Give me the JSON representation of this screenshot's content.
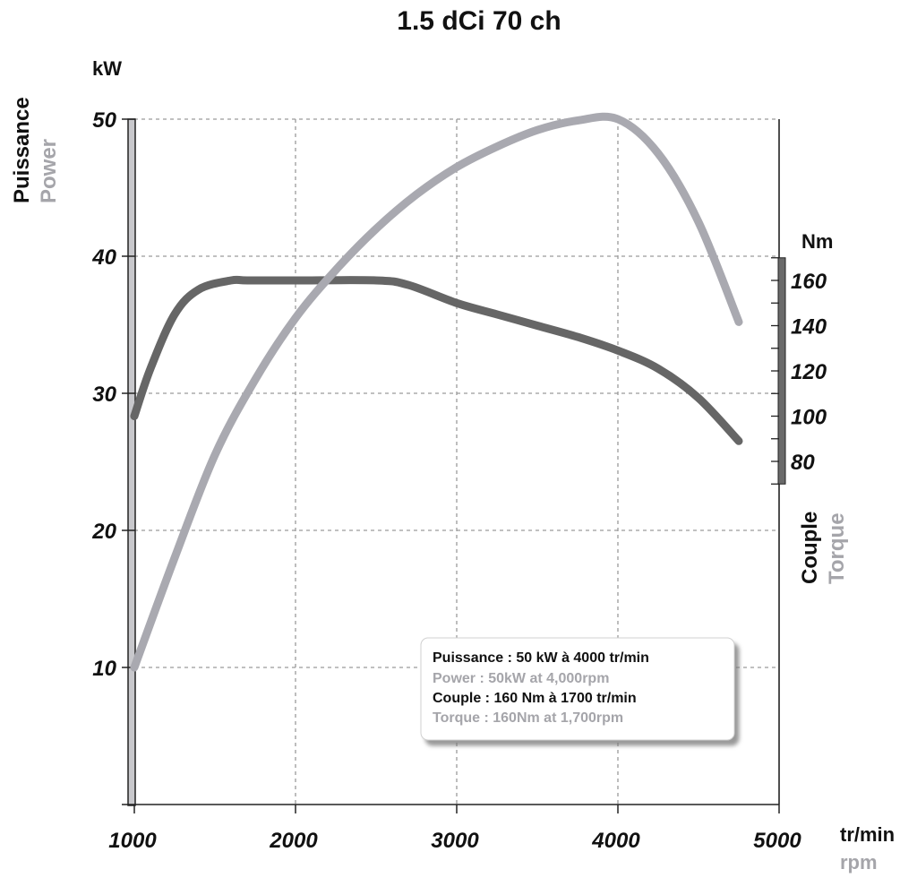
{
  "chart_data": {
    "type": "line",
    "title": "1.5 dCi 70 ch",
    "x_axis": {
      "label": "tr/min",
      "label_secondary": "rpm",
      "range": [
        1000,
        5000
      ],
      "ticks": [
        1000,
        2000,
        3000,
        4000,
        5000
      ]
    },
    "y_axis_left": {
      "unit": "kW",
      "label": "Puissance",
      "label_secondary": "Power",
      "range": [
        0,
        50
      ],
      "ticks": [
        10,
        20,
        30,
        40,
        50
      ]
    },
    "y_axis_right": {
      "unit": "Nm",
      "label": "Couple",
      "label_secondary": "Torque",
      "range": [
        70,
        170
      ],
      "ticks": [
        80,
        100,
        120,
        140,
        160
      ]
    },
    "grid": true,
    "series": [
      {
        "name": "Puissance",
        "axis": "left",
        "color": "#a9a9b0",
        "x": [
          1000,
          1250,
          1500,
          1750,
          2000,
          2250,
          2500,
          2750,
          3000,
          3250,
          3500,
          3750,
          4000,
          4250,
          4500,
          4750
        ],
        "y": [
          10,
          18,
          25.5,
          31,
          35.5,
          39,
          42,
          44.5,
          46.5,
          48,
          49.2,
          49.9,
          50,
          47.5,
          42.5,
          35.2
        ]
      },
      {
        "name": "Couple",
        "axis": "right",
        "color": "#666666",
        "x": [
          1000,
          1100,
          1250,
          1400,
          1600,
          1700,
          2000,
          2500,
          2700,
          3000,
          3250,
          3500,
          3750,
          4000,
          4250,
          4500,
          4750
        ],
        "y": [
          100,
          121,
          145,
          156,
          160,
          160,
          160,
          160,
          158,
          150,
          145,
          140,
          135,
          129,
          121,
          108,
          89
        ]
      }
    ],
    "annotation": {
      "lines": [
        {
          "text": "Puissance : 50 kW à 4000 tr/min",
          "color": "#111111"
        },
        {
          "text": "Power : 50kW at 4,000rpm",
          "color": "#a5a5aa"
        },
        {
          "text": "Couple : 160 Nm à 1700 tr/min",
          "color": "#111111"
        },
        {
          "text": "Torque : 160Nm at 1,700rpm",
          "color": "#a5a5aa"
        }
      ]
    }
  }
}
